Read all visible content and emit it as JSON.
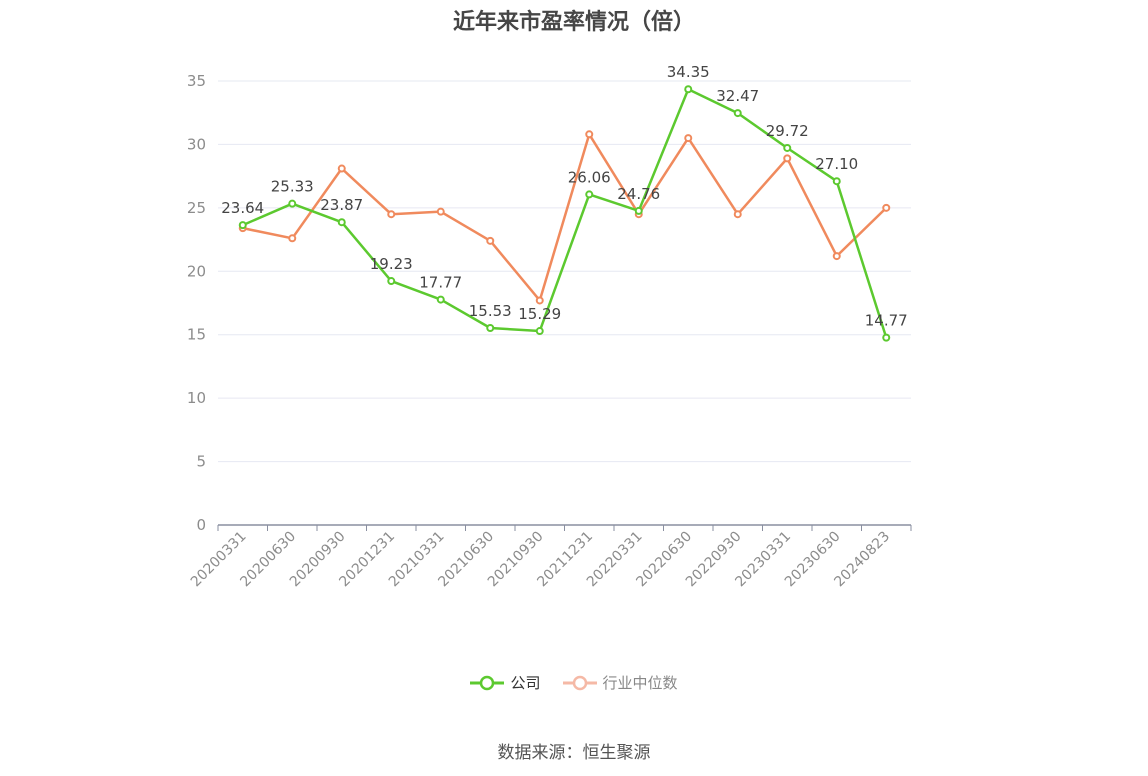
{
  "title": "近年来市盈率情况（倍）",
  "source": "数据来源：恒生聚源",
  "legend": {
    "company": "公司",
    "industry": "行业中位数"
  },
  "colors": {
    "company": "#5cc92f",
    "industry": "#f08a5d",
    "industry_legend": "#f5b9a6",
    "grid": "#e6e8f2",
    "axis": "#8a8fa0",
    "tick_text": "#8c8c8c",
    "label_text": "#444444"
  },
  "chart_data": {
    "type": "line",
    "title": "近年来市盈率情况（倍）",
    "categories": [
      "20200331",
      "20200630",
      "20200930",
      "20201231",
      "20210331",
      "20210630",
      "20210930",
      "20211231",
      "20220331",
      "20220630",
      "20220930",
      "20230331",
      "20230630",
      "20240823"
    ],
    "ylim": [
      0,
      35
    ],
    "yticks": [
      0,
      5,
      10,
      15,
      20,
      25,
      30,
      35
    ],
    "grid": true,
    "legend_position": "bottom",
    "series": [
      {
        "name": "公司",
        "values": [
          23.64,
          25.33,
          23.87,
          19.23,
          17.77,
          15.53,
          15.29,
          26.06,
          24.76,
          34.35,
          32.47,
          29.72,
          27.1,
          14.77
        ],
        "labels": [
          "23.64",
          "25.33",
          "23.87",
          "19.23",
          "17.77",
          "15.53",
          "15.29",
          "26.06",
          "24.76",
          "34.35",
          "32.47",
          "29.72",
          "27.10",
          "14.77"
        ]
      },
      {
        "name": "行业中位数",
        "values": [
          23.4,
          22.6,
          28.1,
          24.5,
          24.7,
          22.4,
          17.7,
          30.8,
          24.5,
          30.5,
          24.5,
          28.9,
          21.2,
          25.0
        ]
      }
    ]
  }
}
